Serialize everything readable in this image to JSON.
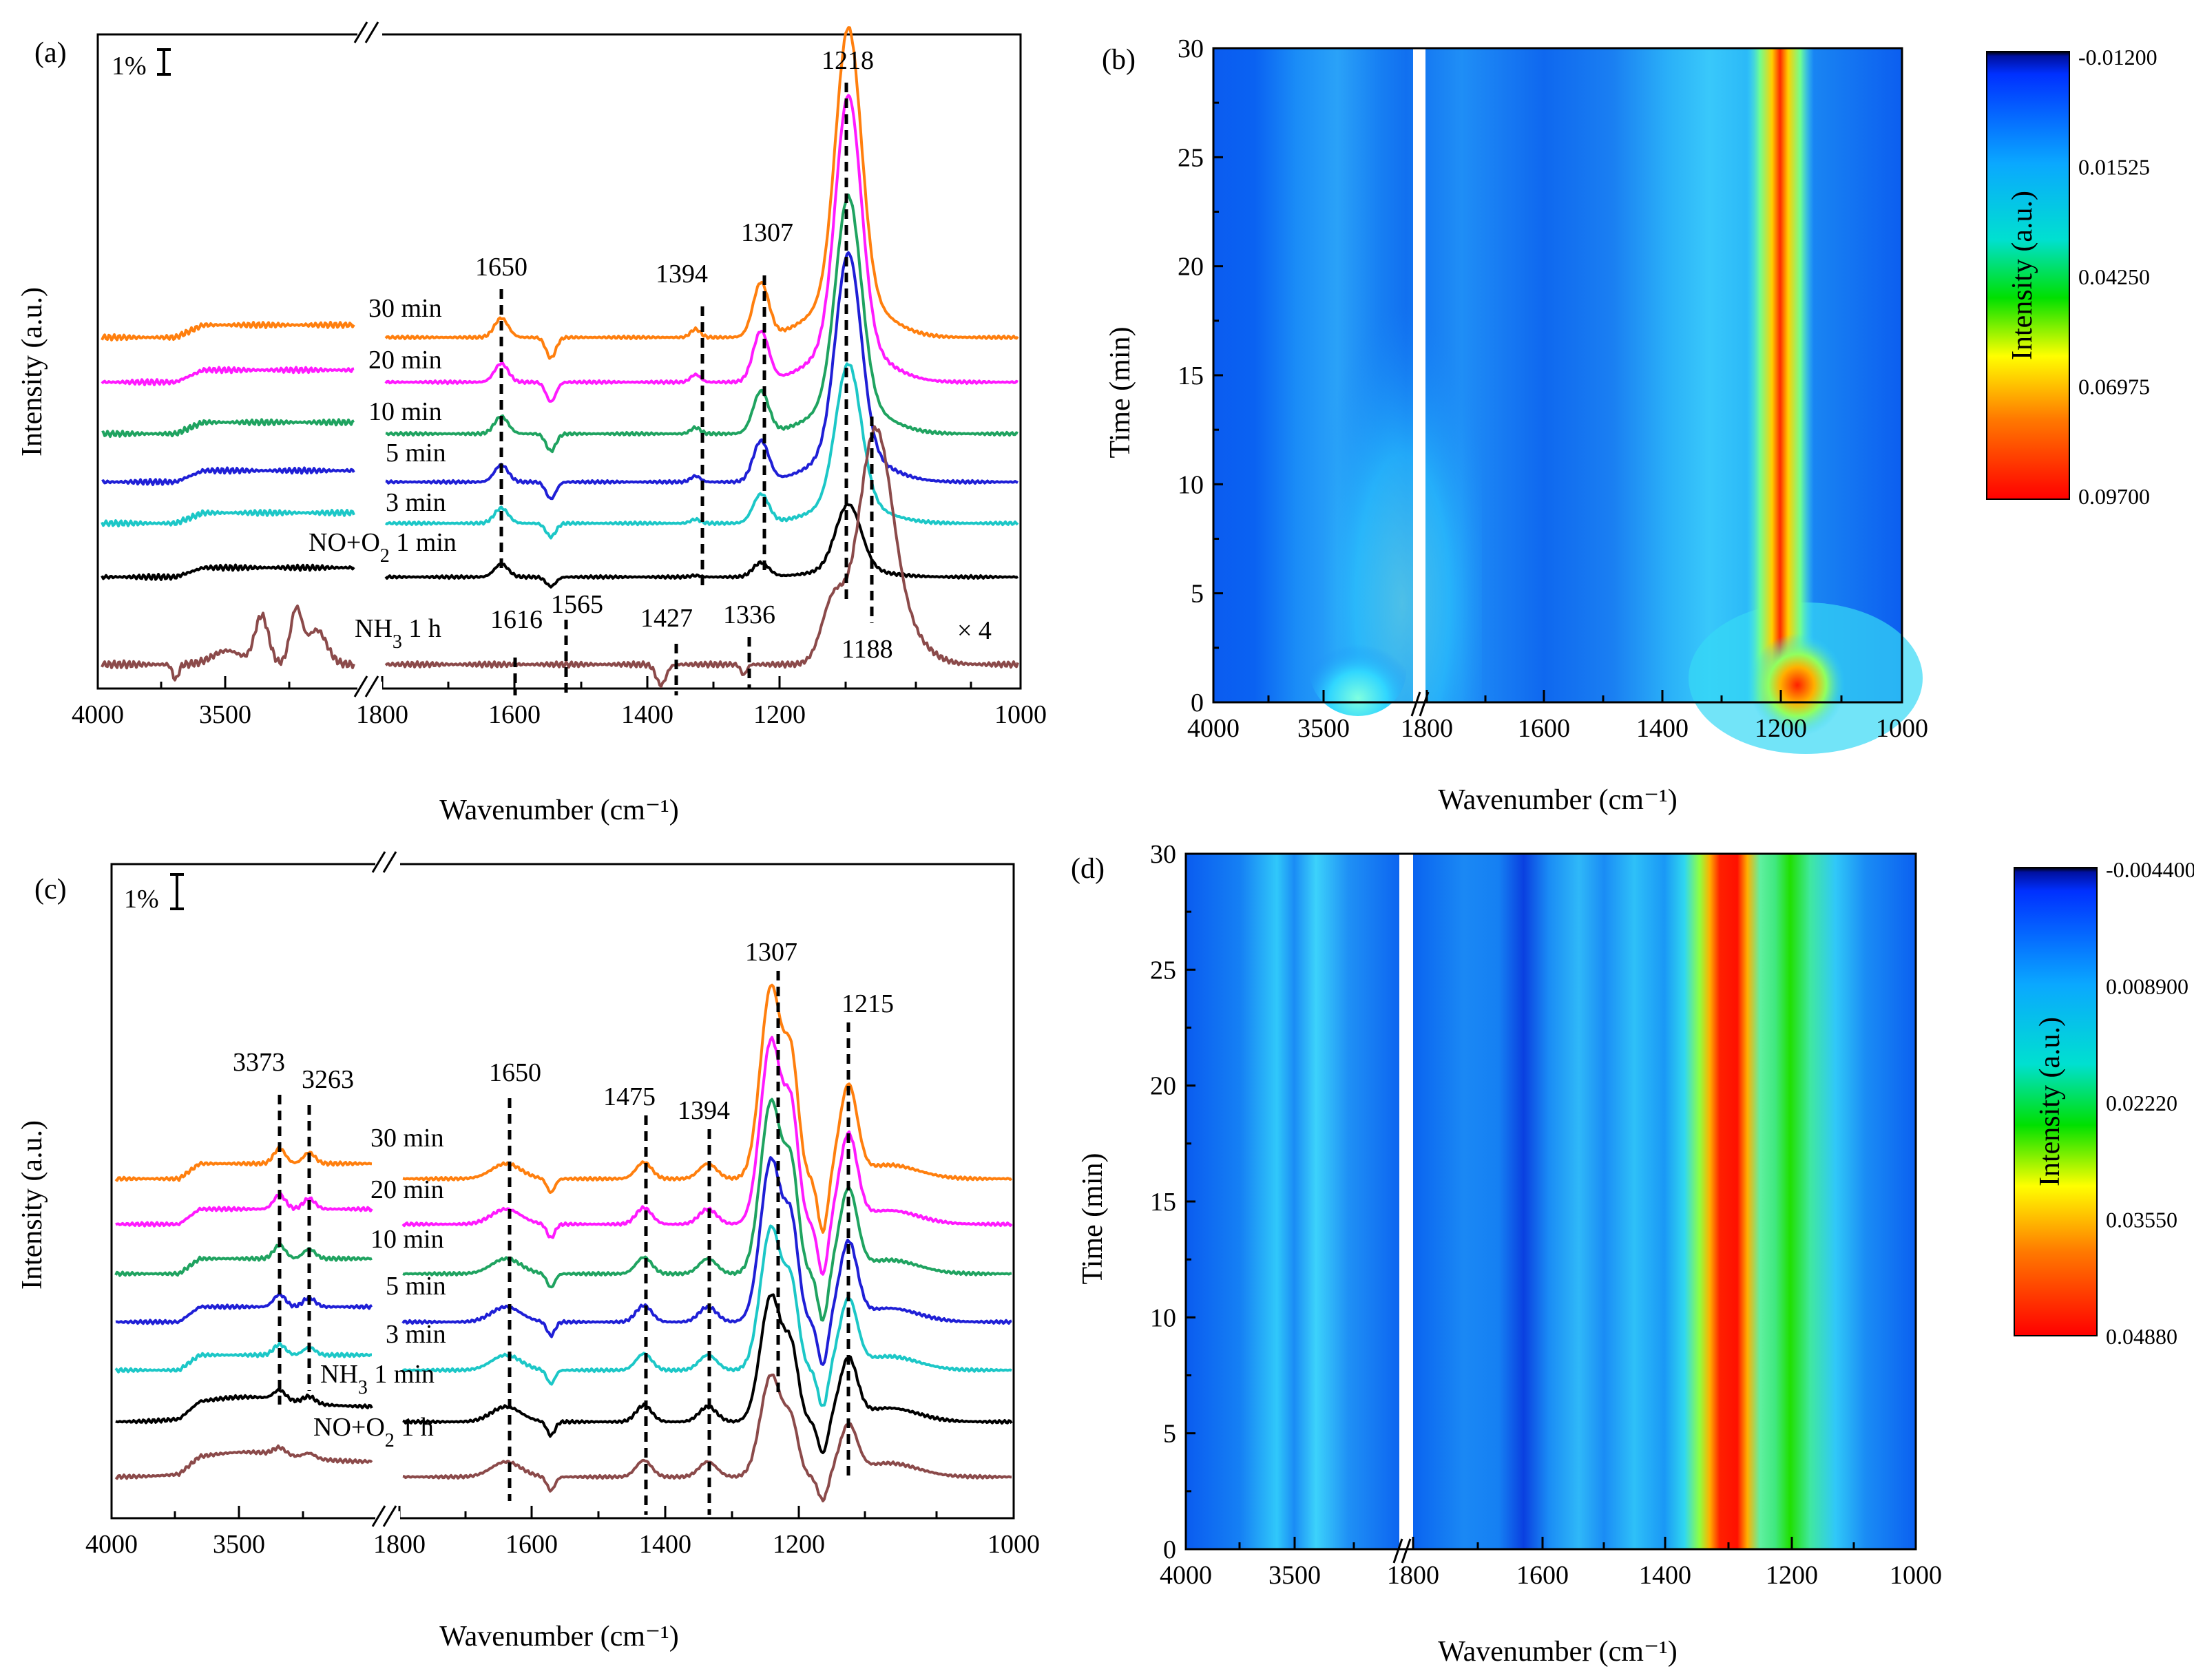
{
  "chart_data": [
    {
      "panel": "(a)",
      "type": "line",
      "xlabel": "Wavenumber (cm⁻¹)",
      "ylabel": "Intensity (a.u.)",
      "x_ticks": [
        "4000",
        "3500",
        "1800",
        "1600",
        "1400",
        "1200",
        "1000"
      ],
      "scale_bar": "1%",
      "peaks": [
        "1650",
        "1394",
        "1307",
        "1218"
      ],
      "lower_peaks": [
        "1616",
        "1565",
        "1427",
        "1336",
        "1188"
      ],
      "factor_label": "× 4",
      "series": [
        {
          "name": "30 min",
          "color": "#ff7f0e"
        },
        {
          "name": "20 min",
          "color": "#ff1aff"
        },
        {
          "name": "10 min",
          "color": "#1fa360"
        },
        {
          "name": "5 min",
          "color": "#1f1fd6"
        },
        {
          "name": "3 min",
          "color": "#1cc7c7"
        },
        {
          "name": "NO+O2 1 min",
          "color": "#000000"
        },
        {
          "name": "NH3 1 h",
          "color": "#8b4a4a"
        }
      ],
      "legend_texts": {
        "s5_pre": "NO+O",
        "s5_sub": "2",
        "s5_post": " 1 min",
        "s6_pre": "NH",
        "s6_sub": "3",
        "s6_post": " 1 h"
      }
    },
    {
      "panel": "(b)",
      "type": "heatmap",
      "xlabel": "Wavenumber (cm⁻¹)",
      "ylabel": "Time (min)",
      "x_ticks": [
        "4000",
        "3500",
        "1800",
        "1600",
        "1400",
        "1200",
        "1000"
      ],
      "y_ticks": [
        "0",
        "5",
        "10",
        "15",
        "20",
        "25",
        "30"
      ],
      "colorbar_label": "Intensity (a.u.)",
      "colorbar_ticks": [
        "-0.01200",
        "0.01525",
        "0.04250",
        "0.06975",
        "0.09700"
      ]
    },
    {
      "panel": "(c)",
      "type": "line",
      "xlabel": "Wavenumber (cm⁻¹)",
      "ylabel": "Intensity (a.u.)",
      "x_ticks": [
        "4000",
        "3500",
        "1800",
        "1600",
        "1400",
        "1200",
        "1000"
      ],
      "scale_bar": "1%",
      "peaks": [
        "3373",
        "3263",
        "1650",
        "1475",
        "1394",
        "1307",
        "1215"
      ],
      "series": [
        {
          "name": "30 min",
          "color": "#ff7f0e"
        },
        {
          "name": "20 min",
          "color": "#ff1aff"
        },
        {
          "name": "10 min",
          "color": "#1fa360"
        },
        {
          "name": "5 min",
          "color": "#1f1fd6"
        },
        {
          "name": "3 min",
          "color": "#1cc7c7"
        },
        {
          "name": "NH3 1 min",
          "color": "#000000"
        },
        {
          "name": "NO+O2 1 h",
          "color": "#8b4a4a"
        }
      ],
      "legend_texts": {
        "s5_pre": "NH",
        "s5_sub": "3",
        "s5_post": " 1 min",
        "s6_pre": "NO+O",
        "s6_sub": "2",
        "s6_post": " 1 h"
      }
    },
    {
      "panel": "(d)",
      "type": "heatmap",
      "xlabel": "Wavenumber (cm⁻¹)",
      "ylabel": "Time (min)",
      "x_ticks": [
        "4000",
        "3500",
        "1800",
        "1600",
        "1400",
        "1200",
        "1000"
      ],
      "y_ticks": [
        "0",
        "5",
        "10",
        "15",
        "20",
        "25",
        "30"
      ],
      "colorbar_label": "Intensity (a.u.)",
      "colorbar_ticks": [
        "-0.004400",
        "0.008900",
        "0.02220",
        "0.03550",
        "0.04880"
      ]
    }
  ]
}
